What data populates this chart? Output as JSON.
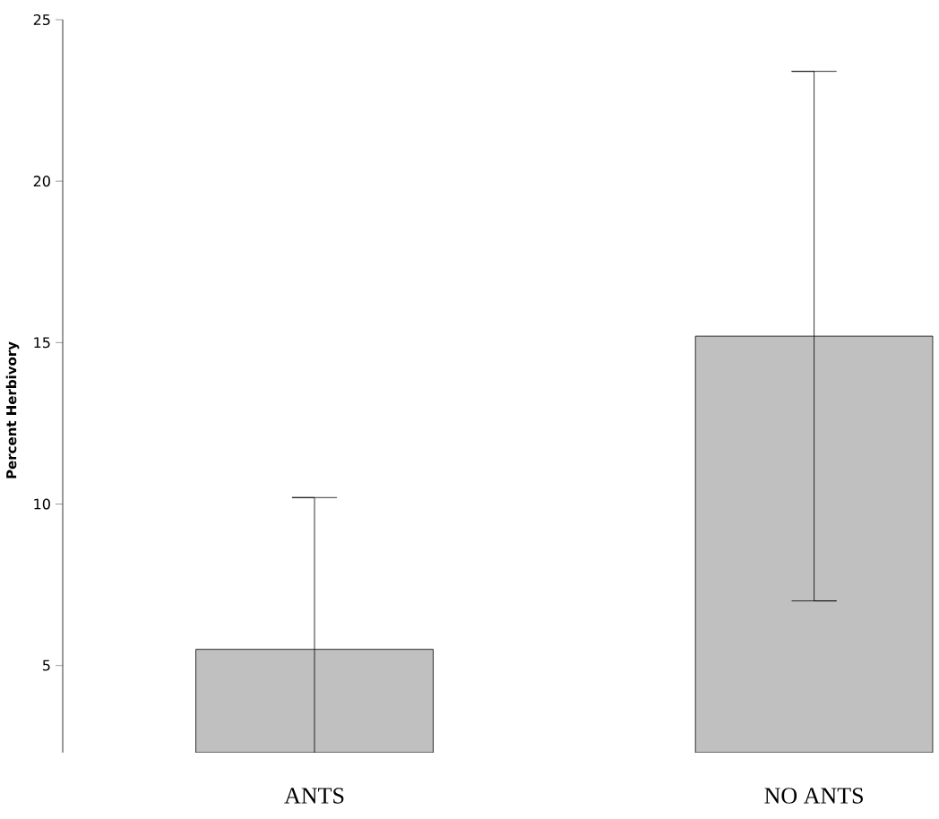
{
  "chart_data": {
    "type": "bar",
    "ylabel": "Percent Herbivory",
    "categories": [
      "ANTS",
      "NO ANTS"
    ],
    "values": [
      5.5,
      15.2
    ],
    "errors": [
      4.7,
      8.2
    ],
    "color": "#c0c0c0",
    "ylim": [
      2.3,
      25
    ],
    "yticks": [
      5,
      10,
      15,
      20,
      25
    ]
  }
}
